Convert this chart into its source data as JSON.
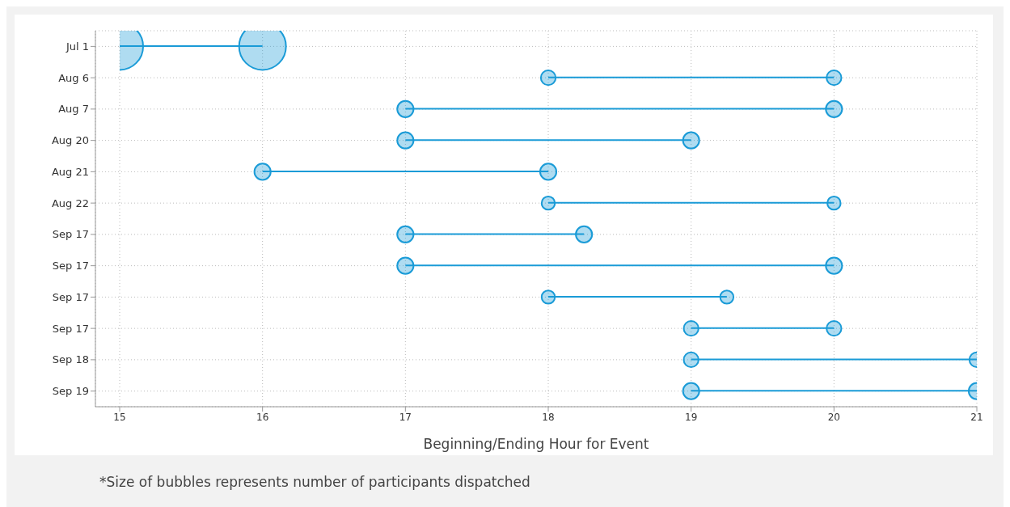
{
  "chart_data": {
    "type": "bubble",
    "orientation": "horizontal",
    "xlabel": "Beginning/Ending Hour for Event",
    "annotations": [
      "*Size of bubbles represents number of participants dispatched"
    ],
    "categories": [
      "Jul 1",
      "Aug 6",
      "Aug 7",
      "Aug 20",
      "Aug 21",
      "Aug 22",
      "Sep 17",
      "Sep 17",
      "Sep 17",
      "Sep 17",
      "Sep 18",
      "Sep 19"
    ],
    "series": [
      {
        "type": "bar",
        "color": "#1a9bd7",
        "base": [
          15,
          18,
          17,
          17,
          16,
          18,
          17,
          17,
          18,
          19,
          19,
          19
        ],
        "values": [
          1,
          2,
          3,
          2,
          2,
          2,
          1.25,
          3,
          1.25,
          1,
          2,
          2
        ]
      },
      {
        "type": "bubble",
        "color": "#1a9bd7",
        "values": [
          15,
          18,
          17,
          17,
          16,
          18,
          17,
          17,
          18,
          19,
          19,
          19
        ],
        "sizes": [
          1,
          0.1,
          0.12,
          0.12,
          0.12,
          0.08,
          0.12,
          0.12,
          0.08,
          0.1,
          0.1,
          0.12
        ]
      },
      {
        "type": "bubble",
        "color": "#1a9bd7",
        "values": [
          16,
          20,
          20,
          19,
          18,
          20,
          18.25,
          20,
          19.25,
          20,
          21,
          21
        ],
        "sizes": [
          1,
          0.1,
          0.12,
          0.12,
          0.12,
          0.08,
          0.12,
          0.12,
          0.08,
          0.1,
          0.1,
          0.12
        ]
      }
    ],
    "xlim": [
      15,
      21
    ],
    "xticks": [
      15,
      16,
      17,
      18,
      19,
      20,
      21
    ],
    "grid": true,
    "marker": "circle"
  }
}
